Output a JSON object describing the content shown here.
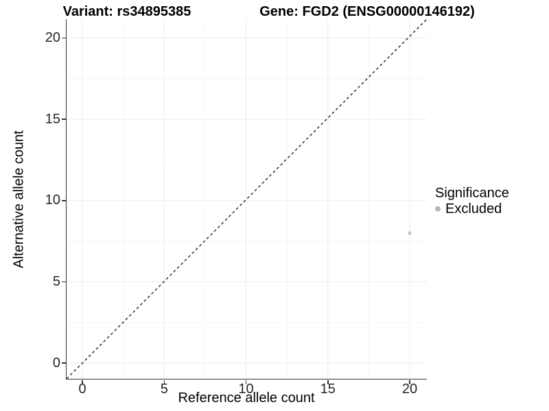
{
  "titles": {
    "variant": "Variant: rs34895385",
    "gene": "Gene: FGD2 (ENSG00000146192)"
  },
  "legend": {
    "title": "Significance",
    "items": [
      {
        "label": "Excluded",
        "color": "#b9b9b9"
      }
    ]
  },
  "chart_data": {
    "type": "scatter",
    "title_left": "Variant: rs34895385",
    "title_right": "Gene: FGD2 (ENSG00000146192)",
    "xlabel": "Reference allele count",
    "ylabel": "Alternative allele count",
    "xlim": [
      -1,
      21.1
    ],
    "ylim": [
      -1,
      21.2
    ],
    "x_ticks": [
      0,
      5,
      10,
      15,
      20
    ],
    "y_ticks": [
      0,
      5,
      10,
      15,
      20
    ],
    "grid": "major+minor",
    "legend_position": "right",
    "series": [
      {
        "name": "Excluded",
        "color": "#c3c3c3",
        "points": [
          {
            "x": 20,
            "y": 8
          }
        ]
      }
    ],
    "reference_line": {
      "type": "identity y=x",
      "style": "dashed",
      "color": "#000000"
    }
  },
  "colors": {
    "background": "#ffffff",
    "axis_line": "#333333",
    "grid_major": "#ebebeb",
    "grid_minor": "#f5f5f5",
    "tick_label": "#262626",
    "dashed_line": "#111111"
  }
}
